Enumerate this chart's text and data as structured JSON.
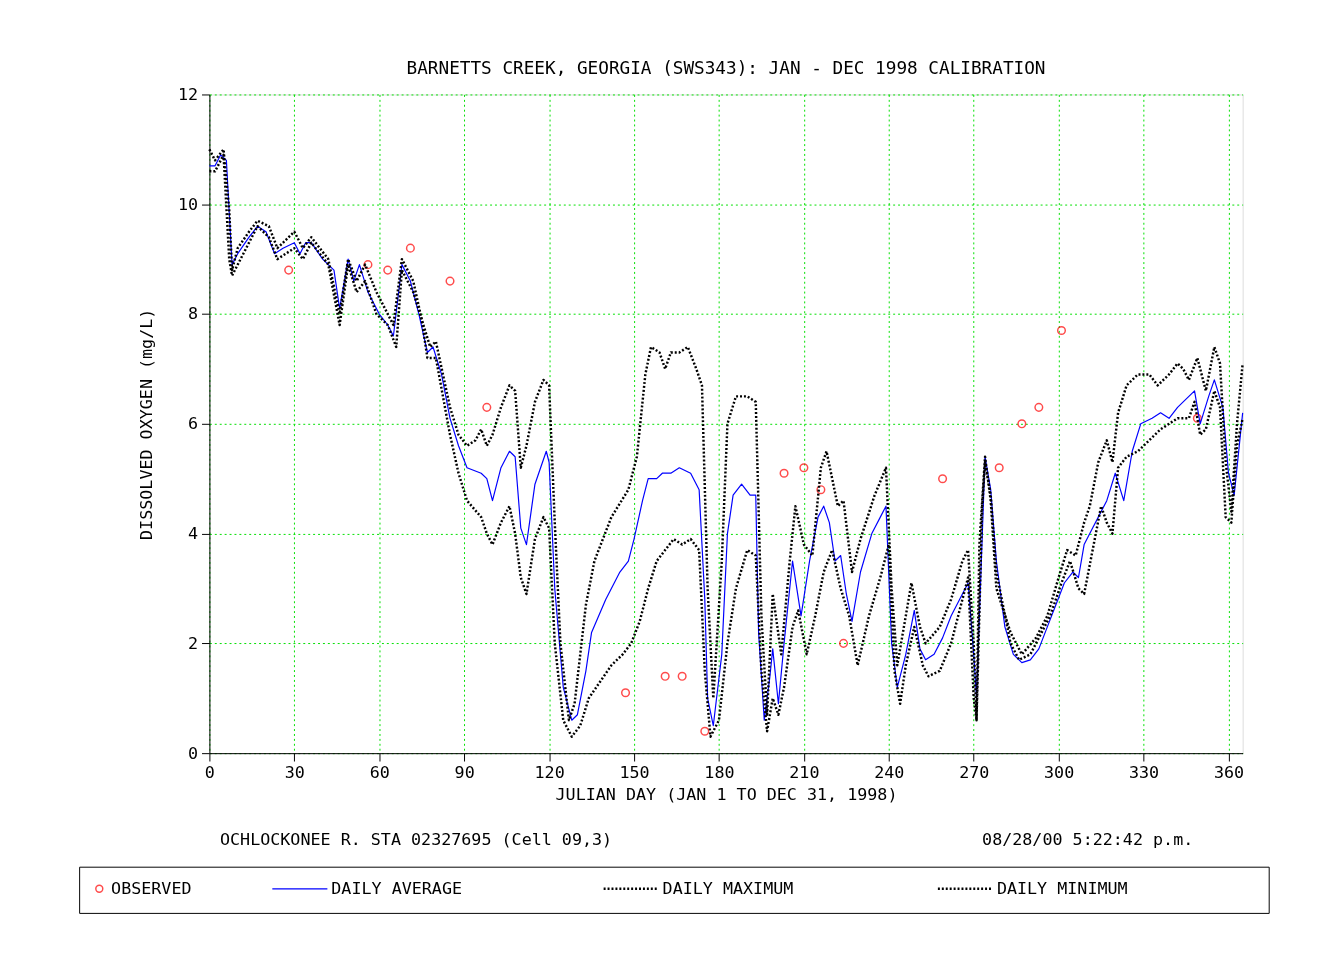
{
  "chart_data": {
    "type": "line",
    "title": "BARNETTS CREEK, GEORGIA (SWS343): JAN - DEC 1998 CALIBRATION",
    "xlabel": "JULIAN DAY (JAN 1 TO DEC 31, 1998)",
    "ylabel": "DISSOLVED OXYGEN (mg/L)",
    "annotations": [
      "OCHLOCKONEE R. STA 02327695 (Cell 09,3)",
      "08/28/00  5:22:42 p.m."
    ],
    "xlim": [
      0,
      365
    ],
    "xticks": [
      0,
      30,
      60,
      90,
      120,
      150,
      180,
      210,
      240,
      270,
      300,
      330,
      360
    ],
    "ylim": [
      0,
      12
    ],
    "yticks": [
      0,
      2,
      4,
      6,
      8,
      10,
      12
    ],
    "grid": true,
    "legend": "bottom",
    "series": [
      {
        "name": "OBSERVED",
        "type": "scatter",
        "marker": "circle",
        "color": "#ff0000",
        "x": [
          28,
          56,
          63,
          71,
          85,
          98,
          147,
          161,
          167,
          175,
          203,
          210,
          216,
          224,
          259,
          279,
          287,
          293,
          301,
          349
        ],
        "values": [
          8.8,
          8.9,
          8.8,
          9.2,
          8.6,
          6.3,
          1.1,
          1.4,
          1.4,
          0.4,
          5.1,
          5.2,
          4.8,
          2.0,
          5.0,
          5.2,
          6.0,
          6.3,
          7.7,
          6.1
        ]
      },
      {
        "name": "DAILY AVERAGE",
        "type": "line",
        "line_style": "solid",
        "color": "#0000ff",
        "x": [
          0,
          2,
          4,
          6,
          8,
          10,
          14,
          17,
          20,
          23,
          26,
          30,
          32,
          34,
          36,
          40,
          44,
          46,
          49,
          51,
          53,
          56,
          60,
          63,
          65,
          68,
          71,
          74,
          77,
          79,
          82,
          85,
          88,
          91,
          96,
          98,
          100,
          103,
          106,
          108,
          110,
          112,
          115,
          119,
          120,
          122,
          125,
          128,
          130,
          133,
          135,
          140,
          145,
          148,
          150,
          153,
          155,
          158,
          160,
          163,
          166,
          170,
          173,
          175,
          176,
          178,
          181,
          183,
          185,
          188,
          191,
          193,
          194,
          196,
          198,
          199,
          201,
          203,
          206,
          209,
          212,
          215,
          217,
          219,
          221,
          223,
          225,
          227,
          230,
          234,
          237,
          239,
          241,
          243,
          246,
          249,
          251,
          253,
          256,
          259,
          262,
          265,
          268,
          270,
          271,
          272,
          274,
          276,
          278,
          281,
          284,
          287,
          290,
          293,
          296,
          299,
          302,
          305,
          307,
          309,
          312,
          314,
          317,
          320,
          323,
          326,
          329,
          333,
          336,
          339,
          342,
          346,
          348,
          350,
          353,
          355,
          358,
          360,
          362,
          365
        ],
        "values": [
          10.7,
          10.7,
          10.9,
          10.8,
          8.9,
          9.1,
          9.4,
          9.6,
          9.5,
          9.1,
          9.2,
          9.3,
          9.1,
          9.3,
          9.3,
          9.0,
          8.8,
          8.1,
          9.0,
          8.6,
          8.9,
          8.4,
          8.0,
          7.8,
          7.6,
          8.9,
          8.6,
          8.0,
          7.3,
          7.4,
          6.9,
          6.1,
          5.6,
          5.2,
          5.1,
          5.0,
          4.6,
          5.2,
          5.5,
          5.4,
          4.1,
          3.8,
          4.9,
          5.5,
          5.3,
          3.0,
          1.2,
          0.6,
          0.7,
          1.5,
          2.2,
          2.8,
          3.3,
          3.5,
          3.9,
          4.6,
          5.0,
          5.0,
          5.1,
          5.1,
          5.2,
          5.1,
          4.8,
          2.8,
          1.0,
          0.5,
          1.8,
          4.0,
          4.7,
          4.9,
          4.7,
          4.7,
          2.2,
          0.6,
          1.4,
          1.9,
          0.9,
          2.0,
          3.5,
          2.5,
          3.5,
          4.3,
          4.5,
          4.2,
          3.5,
          3.6,
          2.9,
          2.4,
          3.3,
          4.0,
          4.3,
          4.5,
          2.0,
          1.2,
          1.8,
          2.6,
          1.9,
          1.7,
          1.8,
          2.1,
          2.5,
          2.8,
          3.1,
          1.8,
          1.0,
          2.5,
          5.4,
          4.8,
          3.5,
          2.3,
          1.8,
          1.65,
          1.7,
          1.9,
          2.3,
          2.7,
          3.1,
          3.3,
          3.2,
          3.8,
          4.1,
          4.3,
          4.6,
          5.1,
          4.6,
          5.5,
          6.0,
          6.1,
          6.2,
          6.1,
          6.3,
          6.5,
          6.6,
          6.0,
          6.5,
          6.8,
          6.3,
          5.1,
          4.7,
          6.2
        ]
      },
      {
        "name": "DAILY MAXIMUM",
        "type": "line",
        "line_style": "dotted",
        "color": "#000000",
        "x": [
          0,
          2,
          5,
          7,
          8,
          10,
          14,
          17,
          21,
          24,
          30,
          33,
          36,
          42,
          46,
          49,
          52,
          55,
          59,
          65,
          68,
          72,
          75,
          78,
          80,
          85,
          88,
          91,
          94,
          96,
          98,
          100,
          103,
          106,
          108,
          110,
          112,
          115,
          118,
          120,
          122,
          124,
          127,
          129,
          133,
          136,
          142,
          148,
          151,
          154,
          156,
          159,
          161,
          163,
          166,
          169,
          172,
          174,
          176,
          178,
          181,
          183,
          186,
          190,
          193,
          195,
          197,
          199,
          202,
          205,
          207,
          210,
          213,
          216,
          218,
          222,
          224,
          227,
          230,
          235,
          239,
          241,
          243,
          246,
          248,
          251,
          253,
          258,
          262,
          266,
          268,
          270,
          271,
          272,
          274,
          276,
          278,
          283,
          287,
          292,
          296,
          300,
          303,
          306,
          309,
          311,
          314,
          317,
          319,
          321,
          324,
          328,
          332,
          335,
          339,
          342,
          344,
          346,
          349,
          352,
          355,
          357,
          359,
          361,
          363,
          365
        ],
        "values": [
          11.0,
          10.8,
          11.0,
          9.9,
          8.8,
          9.2,
          9.5,
          9.7,
          9.6,
          9.2,
          9.5,
          9.2,
          9.4,
          9.0,
          8.0,
          9.0,
          8.6,
          8.9,
          8.4,
          7.8,
          9.0,
          8.6,
          7.9,
          7.4,
          7.5,
          6.3,
          5.8,
          5.6,
          5.7,
          5.9,
          5.6,
          5.8,
          6.3,
          6.7,
          6.6,
          5.2,
          5.6,
          6.4,
          6.8,
          6.7,
          4.2,
          2.0,
          0.6,
          0.9,
          2.7,
          3.5,
          4.3,
          4.8,
          5.4,
          6.9,
          7.4,
          7.3,
          7.0,
          7.3,
          7.3,
          7.4,
          7.0,
          6.7,
          3.0,
          1.0,
          3.5,
          6.0,
          6.5,
          6.5,
          6.4,
          2.5,
          0.7,
          2.9,
          1.8,
          3.5,
          4.5,
          3.8,
          3.6,
          5.2,
          5.5,
          4.5,
          4.6,
          3.3,
          3.9,
          4.7,
          5.2,
          3.0,
          1.6,
          2.5,
          3.1,
          2.3,
          2.0,
          2.3,
          2.8,
          3.5,
          3.7,
          2.0,
          0.6,
          3.8,
          5.4,
          4.6,
          3.0,
          2.2,
          1.8,
          2.1,
          2.5,
          3.2,
          3.7,
          3.6,
          4.2,
          4.5,
          5.3,
          5.7,
          5.3,
          6.2,
          6.7,
          6.9,
          6.9,
          6.7,
          6.9,
          7.1,
          7.0,
          6.8,
          7.2,
          6.6,
          7.4,
          7.1,
          5.3,
          4.4,
          6.0,
          7.1
        ]
      },
      {
        "name": "DAILY MINIMUM",
        "type": "line",
        "line_style": "dotted",
        "color": "#000000",
        "x": [
          0,
          2,
          5,
          7,
          8,
          10,
          14,
          17,
          21,
          24,
          30,
          33,
          36,
          42,
          46,
          49,
          52,
          55,
          59,
          63,
          66,
          68,
          72,
          75,
          77,
          80,
          85,
          88,
          91,
          96,
          98,
          100,
          103,
          106,
          108,
          110,
          112,
          115,
          118,
          120,
          122,
          125,
          128,
          131,
          134,
          138,
          142,
          146,
          149,
          152,
          155,
          158,
          161,
          164,
          167,
          170,
          173,
          175,
          177,
          180,
          183,
          186,
          190,
          193,
          195,
          197,
          199,
          201,
          203,
          206,
          208,
          211,
          214,
          217,
          220,
          223,
          226,
          229,
          233,
          237,
          240,
          242,
          244,
          246,
          249,
          252,
          254,
          258,
          262,
          265,
          268,
          270,
          271,
          273,
          274,
          276,
          278,
          283,
          286,
          290,
          294,
          297,
          301,
          304,
          307,
          309,
          312,
          315,
          317,
          319,
          321,
          324,
          328,
          332,
          336,
          339,
          342,
          346,
          348,
          350,
          352,
          355,
          357,
          359,
          361,
          363,
          365
        ],
        "values": [
          10.6,
          10.6,
          10.9,
          9.0,
          8.7,
          8.9,
          9.3,
          9.6,
          9.4,
          9.0,
          9.2,
          9.0,
          9.3,
          8.9,
          7.8,
          8.9,
          8.4,
          8.6,
          8.0,
          7.8,
          7.4,
          8.8,
          8.4,
          7.9,
          7.2,
          7.2,
          5.8,
          5.1,
          4.6,
          4.3,
          4.0,
          3.8,
          4.2,
          4.5,
          4.0,
          3.2,
          2.9,
          3.9,
          4.3,
          4.1,
          2.0,
          0.6,
          0.3,
          0.5,
          1.0,
          1.3,
          1.6,
          1.8,
          2.0,
          2.4,
          3.0,
          3.5,
          3.7,
          3.9,
          3.8,
          3.9,
          3.7,
          1.5,
          0.3,
          0.6,
          2.0,
          3.0,
          3.7,
          3.6,
          1.5,
          0.4,
          1.0,
          0.7,
          1.2,
          2.3,
          2.6,
          1.8,
          2.5,
          3.3,
          3.7,
          3.0,
          2.5,
          1.6,
          2.5,
          3.2,
          3.8,
          1.5,
          0.9,
          1.6,
          2.3,
          1.6,
          1.4,
          1.5,
          2.0,
          2.6,
          3.2,
          1.0,
          0.6,
          4.5,
          5.3,
          4.7,
          3.3,
          2.0,
          1.7,
          1.8,
          2.2,
          2.5,
          3.1,
          3.5,
          3.0,
          2.9,
          3.7,
          4.5,
          4.2,
          4.0,
          5.2,
          5.4,
          5.5,
          5.7,
          5.9,
          6.0,
          6.1,
          6.1,
          6.4,
          5.8,
          5.9,
          6.6,
          6.3,
          4.3,
          4.2,
          5.6,
          6.1
        ]
      }
    ]
  }
}
